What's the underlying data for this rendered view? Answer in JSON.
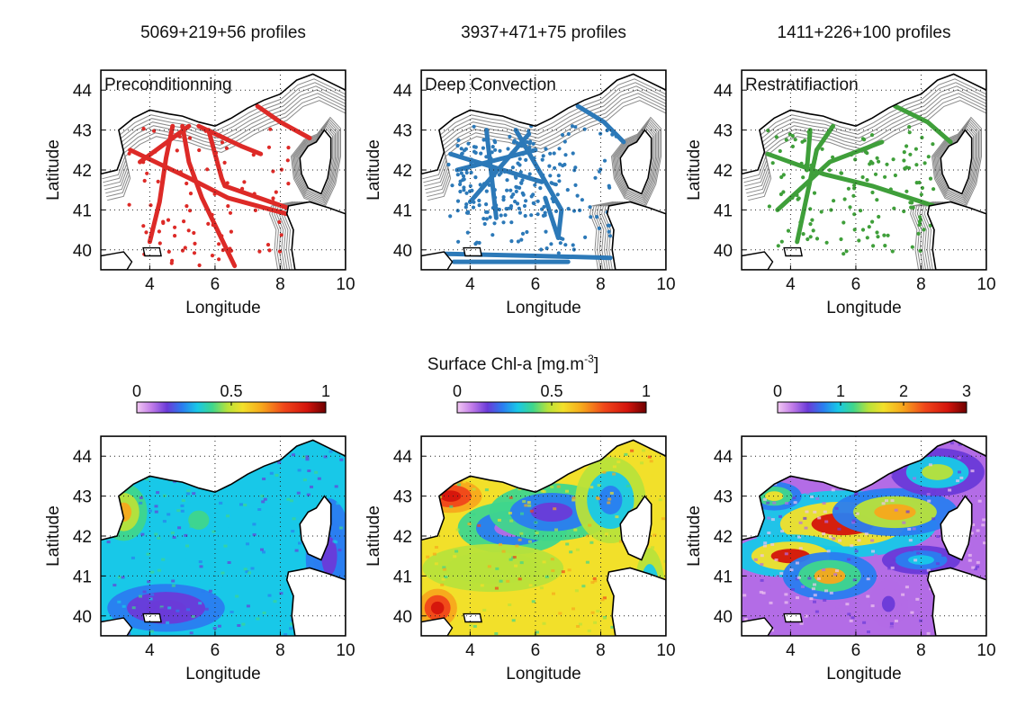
{
  "figure": {
    "shared_colorbar_title": "Surface Chl-a [mg.m",
    "shared_colorbar_title_sup": "-3",
    "shared_colorbar_title_end": "]"
  },
  "axes": {
    "xlabel": "Longitude",
    "ylabel": "Latitude",
    "xlim": [
      2.5,
      10
    ],
    "ylim": [
      39.5,
      44.5
    ],
    "xticks": [
      "4",
      "6",
      "8",
      "10"
    ],
    "yticks": [
      "40",
      "41",
      "42",
      "43",
      "44"
    ],
    "grid": "dotted"
  },
  "panels": [
    {
      "title": "5069+219+56 profiles",
      "label": "Preconditionning",
      "track_color": "#dd2a27",
      "colorbar_ticks": [
        "0",
        "0.5",
        "1"
      ],
      "colorbar_max": 1
    },
    {
      "title": "3937+471+75 profiles",
      "label": "Deep Convection",
      "track_color": "#2c79b8",
      "colorbar_ticks": [
        "0",
        "0.5",
        "1"
      ],
      "colorbar_max": 1
    },
    {
      "title": "1411+226+100 profiles",
      "label": "Restratifiaction",
      "track_color": "#3f9f3a",
      "colorbar_ticks": [
        "0",
        "1",
        "2",
        "3"
      ],
      "colorbar_max": 3
    }
  ]
}
